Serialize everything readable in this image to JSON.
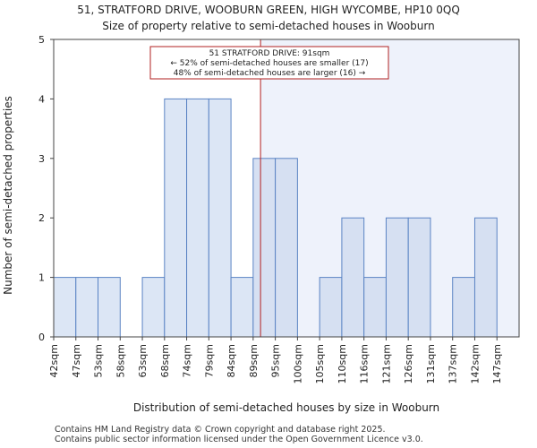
{
  "chart_data": {
    "type": "bar",
    "title": "51, STRATFORD DRIVE, WOOBURN GREEN, HIGH WYCOMBE, HP10 0QQ",
    "subtitle": "Size of property relative to semi-detached houses in Wooburn",
    "xlabel": "Distribution of semi-detached houses by size in Wooburn",
    "ylabel": "Number of semi-detached properties",
    "categories": [
      "42sqm",
      "47sqm",
      "53sqm",
      "58sqm",
      "63sqm",
      "68sqm",
      "74sqm",
      "79sqm",
      "84sqm",
      "89sqm",
      "95sqm",
      "100sqm",
      "105sqm",
      "110sqm",
      "116sqm",
      "121sqm",
      "126sqm",
      "131sqm",
      "137sqm",
      "142sqm",
      "147sqm"
    ],
    "values": [
      1,
      1,
      1,
      0,
      1,
      4,
      4,
      4,
      1,
      3,
      3,
      0,
      1,
      2,
      1,
      2,
      2,
      0,
      1,
      2,
      0
    ],
    "ylim": [
      0,
      5
    ],
    "yticks": [
      0,
      1,
      2,
      3,
      4,
      5
    ],
    "grid": false,
    "marker": {
      "value_sqm": 91,
      "line_color": "#b22222",
      "annotation": [
        "51 STRATFORD DRIVE: 91sqm",
        "← 52% of semi-detached houses are smaller (17)",
        "48% of semi-detached houses are larger (16) →"
      ]
    },
    "colors": {
      "bar_left": "#dce6f5",
      "bar_right": "#d6e0f2",
      "bar_edge": "#5b84c4",
      "shade_right": "#eef2fb"
    }
  },
  "footer": {
    "line1": "Contains HM Land Registry data © Crown copyright and database right 2025.",
    "line2": "Contains public sector information licensed under the Open Government Licence v3.0."
  }
}
